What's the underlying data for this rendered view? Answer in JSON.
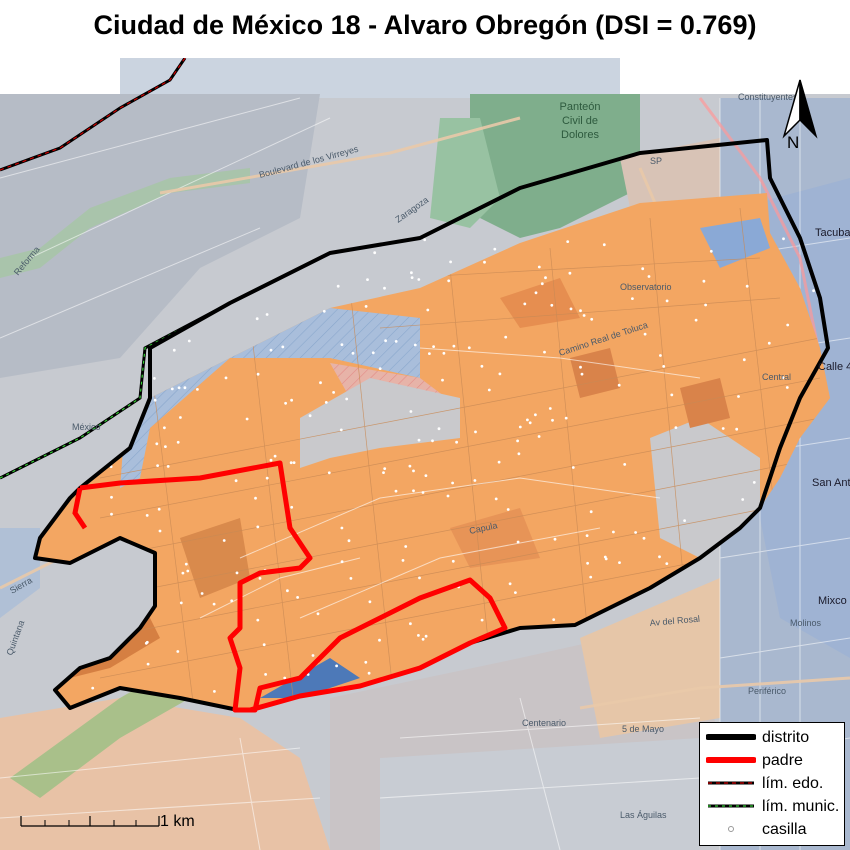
{
  "title": "Ciudad de México 18 - Alvaro Obregón (DSI = 0.769)",
  "map_labels": {
    "panteon": [
      "Panteón",
      "Civil de",
      "Dolores"
    ],
    "observatorio": "Observatorio",
    "central": "Central",
    "tacuba": "Tacuba",
    "san_antonio": "San Ant",
    "san_antonio_top": "San An",
    "calle4": "Calle 4",
    "constituyentes": "Constituyentes",
    "periferico": "Periférico",
    "mixcoac": "Mixco",
    "molinos": "Molinos",
    "centenario": "Centenario",
    "cinco_mayo": "5 de Mayo",
    "zaragoza": "Zaragoza",
    "reforma": "Reforma",
    "mexico": "México",
    "quintana": "Quintana",
    "sierra": "Sierra",
    "capula": "Capula",
    "rosal": "Av del Rosal",
    "camino_real": "Camino Real de Toluca",
    "boulevard": "Boulevard de los Virreyes",
    "las_aguilas": "Las Águilas",
    "sp": "SP"
  },
  "legend": [
    {
      "label": "distrito",
      "symbol": "thick-black-line",
      "color": "#000000"
    },
    {
      "label": "padre",
      "symbol": "thick-red-line",
      "color": "#ff0000"
    },
    {
      "label": "lím. edo.",
      "symbol": "black-red-dashed-line",
      "color": "#cc0000"
    },
    {
      "label": "lím. munic.",
      "symbol": "black-green-dashed-line",
      "color": "#33cc33"
    },
    {
      "label": "casilla",
      "symbol": "hollow-circle",
      "color": "#999999"
    }
  ],
  "scale_label": "1 km",
  "north_label": "N",
  "colors": {
    "district_border": "#000000",
    "padre_border": "#ff0000",
    "section_fill_light": "#f5a55a",
    "section_fill_dark": "#d97b3e",
    "basemap_gray": "#c9ccd2",
    "basemap_blue": "#9fb6d6",
    "park_green": "#7fae8c"
  }
}
